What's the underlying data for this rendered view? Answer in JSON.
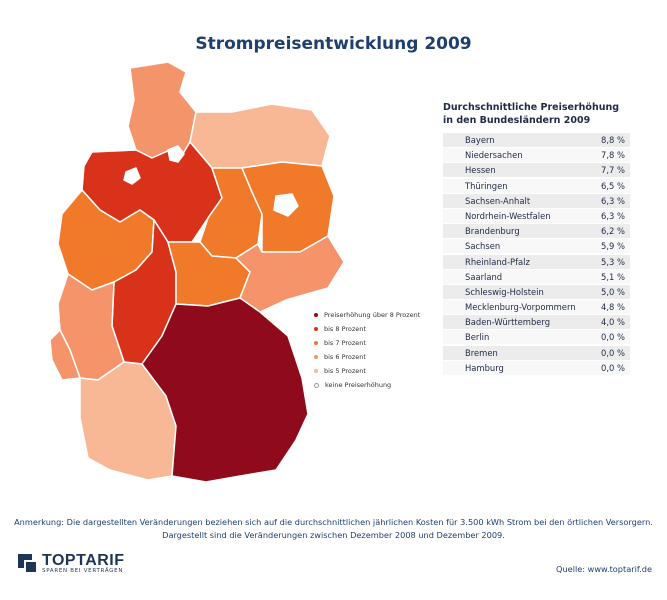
{
  "title": "Strompreisentwicklung 2009",
  "legend": [
    {
      "label": "Preiserhöhung über 8 Prozent",
      "color": "#8f0a1a"
    },
    {
      "label": "bis 8 Prozent",
      "color": "#d8331a"
    },
    {
      "label": "bis 7 Prozent",
      "color": "#f07a2a"
    },
    {
      "label": "bis 6 Prozent",
      "color": "#f5946a"
    },
    {
      "label": "bis 5 Prozent",
      "color": "#f8b896"
    },
    {
      "label": "keine Preiserhöhung",
      "color": "#ffffff"
    }
  ],
  "table": {
    "title_line1": "Durchschnittliche Preiserhöhung",
    "title_line2": "in den Bundesländern 2009",
    "rows": [
      {
        "state": "Bayern",
        "value": "8,8 %"
      },
      {
        "state": "Niedersachen",
        "value": "7,8 %"
      },
      {
        "state": "Hessen",
        "value": "7,7 %"
      },
      {
        "state": "Thüringen",
        "value": "6,5 %"
      },
      {
        "state": "Sachsen-Anhalt",
        "value": "6,3 %"
      },
      {
        "state": "Nordrhein-Westfalen",
        "value": "6,3 %"
      },
      {
        "state": "Brandenburg",
        "value": "6,2 %"
      },
      {
        "state": "Sachsen",
        "value": "5,9 %"
      },
      {
        "state": "Rheinland-Pfalz",
        "value": "5,3 %"
      },
      {
        "state": "Saarland",
        "value": "5,1 %"
      },
      {
        "state": "Schleswig-Holstein",
        "value": "5,0 %"
      },
      {
        "state": "Mecklenburg-Vorpommern",
        "value": "4,8 %"
      },
      {
        "state": "Baden-Württemberg",
        "value": "4,0 %"
      },
      {
        "state": "Berlin",
        "value": "0,0 %"
      },
      {
        "state": "Bremen",
        "value": "0,0 %"
      },
      {
        "state": "Hamburg",
        "value": "0,0 %"
      }
    ]
  },
  "note_line1": "Anmerkung: Die dargestellten Veränderungen beziehen sich auf die durchschnittlichen jährlichen Kosten für 3.500 kWh Strom bei den örtlichen Versorgern.",
  "note_line2": "Dargestellt sind die Veränderungen zwischen Dezember 2008 und Dezember 2009.",
  "logo": {
    "name": "TOPTARIF",
    "tagline": "SPAREN BEI VERTRÄGEN"
  },
  "source": "Quelle: www.toptarif.de",
  "map_colors": {
    "Schleswig-Holstein": "#f4946a",
    "Mecklenburg-Vorpommern": "#f8b896",
    "Hamburg": "#ffffff",
    "Bremen": "#ffffff",
    "Berlin": "#ffffff",
    "Niedersachsen": "#d8331a",
    "Sachsen-Anhalt": "#f07a2a",
    "Brandenburg": "#f07a2a",
    "Nordrhein-Westfalen": "#f07a2a",
    "Hessen": "#d8331a",
    "Thüringen": "#f07a2a",
    "Sachsen": "#f5946a",
    "Rheinland-Pfalz": "#f5946a",
    "Saarland": "#f5946a",
    "Baden-Württemberg": "#f8b896",
    "Bayern": "#8f0a1a"
  }
}
